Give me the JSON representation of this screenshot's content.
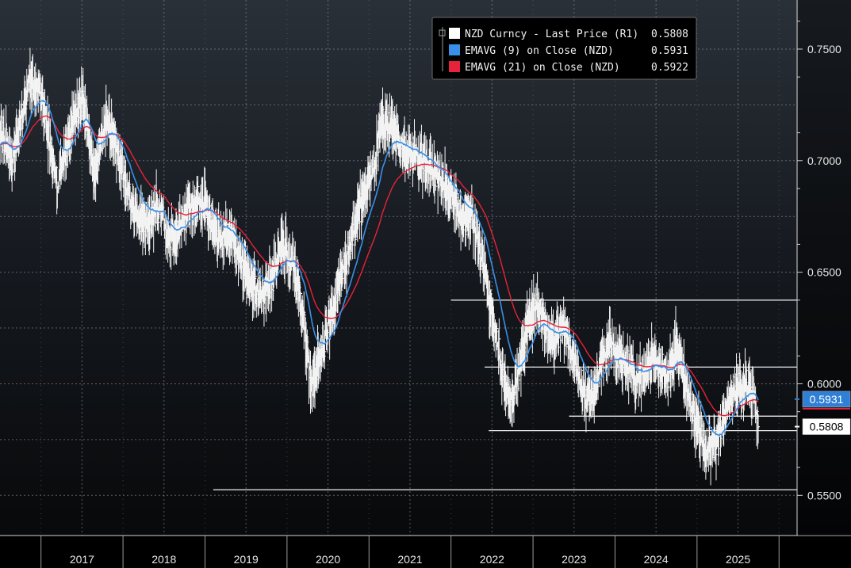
{
  "chart_data": {
    "type": "line",
    "y_axis_side": "right",
    "ylim": [
      0.532,
      0.772
    ],
    "y_ticks": [
      {
        "value": 0.75,
        "label": "0.7500"
      },
      {
        "value": 0.7,
        "label": "0.7000"
      },
      {
        "value": 0.65,
        "label": "0.6500"
      },
      {
        "value": 0.6,
        "label": "0.6000"
      },
      {
        "value": 0.55,
        "label": "0.5500"
      }
    ],
    "x_range": [
      2016.0,
      2025.72
    ],
    "x_labels": [
      "2017",
      "2018",
      "2019",
      "2020",
      "2021",
      "2022",
      "2023",
      "2024",
      "2025"
    ],
    "grid": true,
    "legend_position": "top-right",
    "legend": [
      {
        "label": "NZD Curncy - Last Price (R1)",
        "value": "0.5808",
        "color": "#ffffff"
      },
      {
        "label": "EMAVG (9)  on Close (NZD)",
        "value": "0.5931",
        "color": "#3a8fe8"
      },
      {
        "label": "EMAVG (21)  on Close (NZD)",
        "value": "0.5922",
        "color": "#e8223a"
      }
    ],
    "price_path": [
      [
        2016.0,
        0.714
      ],
      [
        2016.15,
        0.7
      ],
      [
        2016.35,
        0.735
      ],
      [
        2016.5,
        0.73
      ],
      [
        2016.7,
        0.688
      ],
      [
        2016.9,
        0.72
      ],
      [
        2017.0,
        0.728
      ],
      [
        2017.15,
        0.695
      ],
      [
        2017.3,
        0.72
      ],
      [
        2017.45,
        0.7
      ],
      [
        2017.6,
        0.681
      ],
      [
        2017.75,
        0.672
      ],
      [
        2017.95,
        0.68
      ],
      [
        2018.05,
        0.664
      ],
      [
        2018.2,
        0.672
      ],
      [
        2018.35,
        0.682
      ],
      [
        2018.5,
        0.681
      ],
      [
        2018.65,
        0.665
      ],
      [
        2018.8,
        0.668
      ],
      [
        2018.95,
        0.655
      ],
      [
        2019.05,
        0.645
      ],
      [
        2019.2,
        0.64
      ],
      [
        2019.35,
        0.65
      ],
      [
        2019.45,
        0.662
      ],
      [
        2019.6,
        0.65
      ],
      [
        2019.72,
        0.623
      ],
      [
        2019.8,
        0.6
      ],
      [
        2019.95,
        0.618
      ],
      [
        2020.1,
        0.64
      ],
      [
        2020.25,
        0.66
      ],
      [
        2020.4,
        0.68
      ],
      [
        2020.55,
        0.695
      ],
      [
        2020.65,
        0.718
      ],
      [
        2020.8,
        0.712
      ],
      [
        2020.95,
        0.705
      ],
      [
        2021.1,
        0.702
      ],
      [
        2021.25,
        0.697
      ],
      [
        2021.4,
        0.69
      ],
      [
        2021.55,
        0.682
      ],
      [
        2021.65,
        0.672
      ],
      [
        2021.75,
        0.676
      ],
      [
        2021.85,
        0.66
      ],
      [
        2021.95,
        0.64
      ],
      [
        2022.05,
        0.622
      ],
      [
        2022.15,
        0.6
      ],
      [
        2022.25,
        0.592
      ],
      [
        2022.35,
        0.61
      ],
      [
        2022.45,
        0.628
      ],
      [
        2022.55,
        0.636
      ],
      [
        2022.65,
        0.626
      ],
      [
        2022.75,
        0.62
      ],
      [
        2022.85,
        0.626
      ],
      [
        2022.95,
        0.617
      ],
      [
        2023.05,
        0.605
      ],
      [
        2023.15,
        0.592
      ],
      [
        2023.25,
        0.598
      ],
      [
        2023.35,
        0.61
      ],
      [
        2023.45,
        0.62
      ],
      [
        2023.55,
        0.612
      ],
      [
        2023.65,
        0.608
      ],
      [
        2023.75,
        0.602
      ],
      [
        2023.85,
        0.605
      ],
      [
        2023.95,
        0.612
      ],
      [
        2024.05,
        0.608
      ],
      [
        2024.15,
        0.603
      ],
      [
        2024.25,
        0.618
      ],
      [
        2024.35,
        0.6
      ],
      [
        2024.45,
        0.588
      ],
      [
        2024.55,
        0.575
      ],
      [
        2024.62,
        0.57
      ],
      [
        2024.72,
        0.573
      ],
      [
        2024.82,
        0.582
      ],
      [
        2024.92,
        0.596
      ],
      [
        2025.02,
        0.598
      ],
      [
        2025.1,
        0.6
      ],
      [
        2025.2,
        0.593
      ],
      [
        2025.25,
        0.5808
      ]
    ],
    "horizontal_lines": [
      {
        "value": 0.6375,
        "x_from": 2021.5
      },
      {
        "value": 0.6075,
        "x_from": 2021.91
      },
      {
        "value": 0.5855,
        "x_from": 2022.94
      },
      {
        "value": 0.579,
        "x_from": 2021.96
      },
      {
        "value": 0.5525,
        "x_from": 2018.6
      }
    ],
    "last_value_labels": [
      {
        "value": 0.5931,
        "label": "0.5931",
        "color": "#2f7fd6"
      },
      {
        "value": 0.5808,
        "label": "0.5808",
        "color": "#ffffff"
      }
    ]
  }
}
